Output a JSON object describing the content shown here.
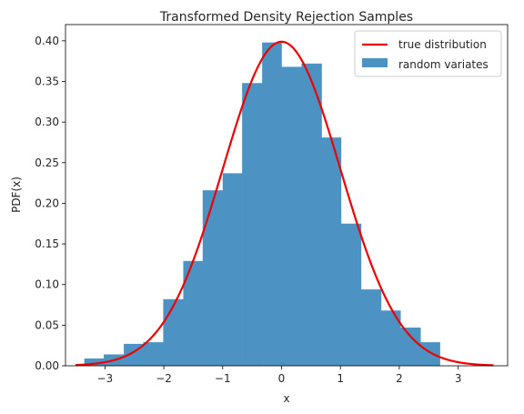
{
  "chart_data": {
    "type": "bar",
    "title": "Transformed Density Rejection Samples",
    "xlabel": "x",
    "ylabel": "PDF(x)",
    "xlim": [
      -3.67,
      3.84
    ],
    "ylim": [
      0,
      0.42
    ],
    "xticks": [
      -3,
      -2,
      -1,
      0,
      1,
      2,
      3
    ],
    "yticks": [
      0.0,
      0.05,
      0.1,
      0.15,
      0.2,
      0.25,
      0.3,
      0.35,
      0.4
    ],
    "ytick_labels": [
      "0.00",
      "0.05",
      "0.10",
      "0.15",
      "0.20",
      "0.25",
      "0.30",
      "0.35",
      "0.40"
    ],
    "grid": false,
    "legend_position": "top-right",
    "histogram": {
      "name": "random variates",
      "color": "#4c93c4",
      "bin_edges": [
        -3.35,
        -3.02,
        -2.68,
        -2.35,
        -2.01,
        -1.67,
        -1.34,
        -1.0,
        -0.67,
        -0.33,
        0.0,
        0.34,
        0.68,
        1.01,
        1.35,
        1.69,
        2.02,
        2.36,
        2.69,
        2.78
      ],
      "values": [
        0.009,
        0.014,
        0.027,
        0.029,
        0.082,
        0.129,
        0.216,
        0.237,
        0.348,
        0.398,
        0.368,
        0.372,
        0.281,
        0.175,
        0.094,
        0.068,
        0.047,
        0.029,
        0.0
      ]
    },
    "line": {
      "name": "true distribution",
      "color": "#ee0000",
      "x_range": [
        -3.5,
        3.6
      ],
      "function": "standard normal pdf"
    }
  }
}
